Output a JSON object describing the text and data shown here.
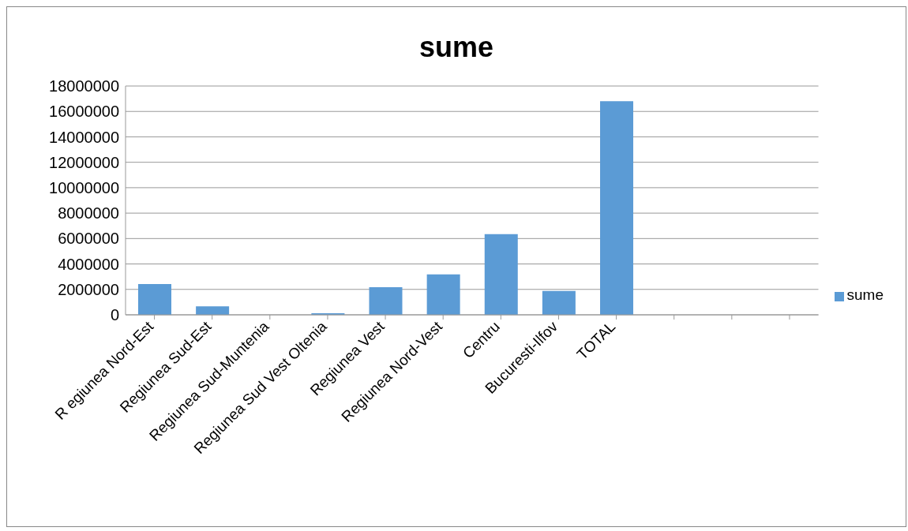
{
  "chart_data": {
    "type": "bar",
    "title": "sume",
    "categories": [
      "R egiunea Nord-Est",
      "Regiunea Sud-Est",
      "Regiunea Sud-Muntenia",
      "Regiunea Sud Vest Oltenia",
      "Regiunea Vest",
      "Regiunea Nord-Vest",
      "Centru",
      "Bucuresti-Ilfov",
      "TOTAL",
      null,
      null,
      null
    ],
    "series": [
      {
        "name": "sume",
        "color": "#5b9bd5",
        "values": [
          2420000,
          660000,
          0,
          120000,
          2180000,
          3180000,
          6340000,
          1880000,
          16800000,
          null,
          null,
          null
        ]
      }
    ],
    "ylim": [
      0,
      18000000
    ],
    "yticks": [
      0,
      2000000,
      4000000,
      6000000,
      8000000,
      10000000,
      12000000,
      14000000,
      16000000,
      18000000
    ],
    "grid": "y",
    "legend": "right"
  }
}
